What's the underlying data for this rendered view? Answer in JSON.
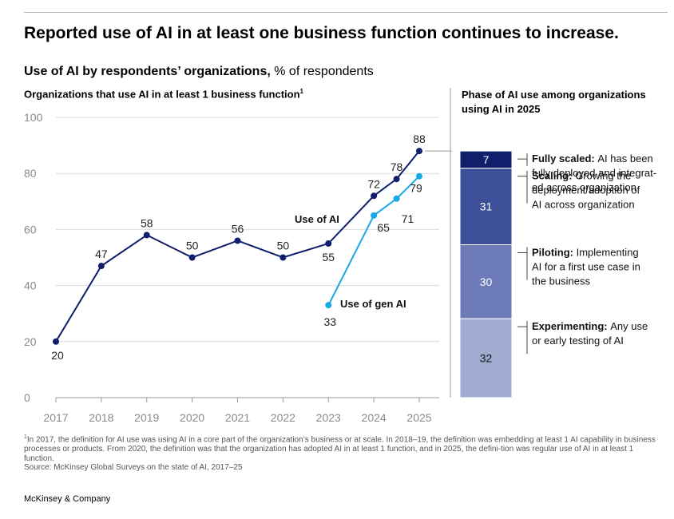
{
  "headline": "Reported use of AI in at least one business function continues to increase.",
  "subtitle": {
    "bold": "Use of AI by respondents’ organizations,",
    "rest": " % of respondents"
  },
  "left_title": "Organizations that use AI in at least 1 business function",
  "left_title_footnote": "1",
  "right_title": "Phase of AI use among organizations using AI in 2025",
  "footnote_marker": "1",
  "footnote": "In 2017, the definition for AI use was using AI in a core part of the organization’s business or at scale. In 2018–19, the definition was embedding at least 1 AI capability in business processes or products. From 2020, the definition was that the organization has adopted AI in at least 1 function, and in 2025, the defini-tion was regular use of AI in at least 1 function.",
  "source": "Source: McKinsey Global Surveys on the state of AI, 2017–25",
  "brand": "McKinsey & Company",
  "colors": {
    "ai": "#0f1f6b",
    "genai": "#17a9e6",
    "grid": "#dcdcdc",
    "axis": "#888888"
  },
  "chart_data": [
    {
      "type": "line",
      "title": "Organizations that use AI in at least 1 business function",
      "ylim": [
        0,
        100
      ],
      "yticks": [
        0,
        20,
        40,
        60,
        80,
        100
      ],
      "xticks": [
        "2017",
        "2018",
        "2019",
        "2020",
        "2021",
        "2022",
        "2023",
        "2024",
        "2025"
      ],
      "xlim": [
        2017,
        2025
      ],
      "grid": true,
      "series": [
        {
          "name": "Use of AI",
          "color": "#0f1f6b",
          "points": [
            {
              "x": 2017,
              "y": 20,
              "label": "20"
            },
            {
              "x": 2018,
              "y": 47,
              "label": "47"
            },
            {
              "x": 2019,
              "y": 58,
              "label": "58"
            },
            {
              "x": 2020,
              "y": 50,
              "label": "50"
            },
            {
              "x": 2021,
              "y": 56,
              "label": "56"
            },
            {
              "x": 2022,
              "y": 50,
              "label": "50"
            },
            {
              "x": 2023,
              "y": 55,
              "label": "55"
            },
            {
              "x": 2024,
              "y": 72,
              "label": "72"
            },
            {
              "x": 2024.5,
              "y": 78,
              "label": "78"
            },
            {
              "x": 2025,
              "y": 88,
              "label": "88"
            }
          ]
        },
        {
          "name": "Use of gen AI",
          "color": "#17a9e6",
          "points": [
            {
              "x": 2023,
              "y": 33,
              "label": "33"
            },
            {
              "x": 2024,
              "y": 65,
              "label": "65"
            },
            {
              "x": 2024.5,
              "y": 71,
              "label": "71"
            },
            {
              "x": 2025,
              "y": 79,
              "label": "79"
            }
          ]
        }
      ]
    },
    {
      "type": "bar",
      "stacked": true,
      "title": "Phase of AI use among organizations using AI in 2025",
      "total": 88,
      "segments": [
        {
          "value": 7,
          "label": "7",
          "color": "#0f1f6b",
          "text_color": "#ffffff",
          "desc_bold": "Fully scaled:",
          "desc": [
            "AI has been",
            "fully deployed and integrat-",
            "ed across organization"
          ]
        },
        {
          "value": 31,
          "label": "31",
          "color": "#3d4f99",
          "text_color": "#ffffff",
          "desc_bold": "Scaling:",
          "desc": [
            "Growing the",
            "deployment/adoption of",
            "AI across organization"
          ]
        },
        {
          "value": 30,
          "label": "30",
          "color": "#6c7bb8",
          "text_color": "#ffffff",
          "desc_bold": "Piloting:",
          "desc": [
            "Implementing",
            "AI for a first use case in",
            "the business"
          ]
        },
        {
          "value": 32,
          "label": "32",
          "color": "#a1aad0",
          "text_color": "#111111",
          "desc_bold": "Experimenting:",
          "desc": [
            "Any use",
            "or early testing of AI"
          ]
        }
      ]
    }
  ]
}
